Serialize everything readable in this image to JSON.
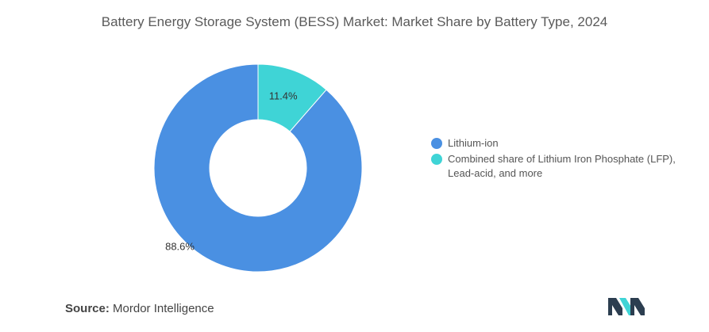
{
  "title": "Battery Energy Storage System (BESS) Market: Market Share by Battery Type, 2024",
  "chart_data": {
    "type": "pie",
    "variant": "donut",
    "title": "Battery Energy Storage System (BESS) Market: Market Share by Battery Type, 2024",
    "categories": [
      "Lithium-ion",
      "Combined share of Lithium Iron Phosphate (LFP), Lead-acid, and more"
    ],
    "values": [
      88.6,
      11.4
    ],
    "value_labels": [
      "88.6%",
      "11.4%"
    ],
    "colors": [
      "#4a90e2",
      "#3fd4d6"
    ],
    "legend_position": "right"
  },
  "legend": {
    "items": [
      {
        "label": "Lithium-ion",
        "color": "#4a90e2"
      },
      {
        "label": "Combined share of Lithium Iron Phosphate (LFP), Lead-acid, and more",
        "color": "#3fd4d6"
      }
    ]
  },
  "source": {
    "label": "Source:",
    "text": "Mordor Intelligence"
  },
  "logo": {
    "icon": "mordor-intelligence-logo-icon",
    "colors": [
      "#2c3e50",
      "#3fd4d6"
    ]
  }
}
